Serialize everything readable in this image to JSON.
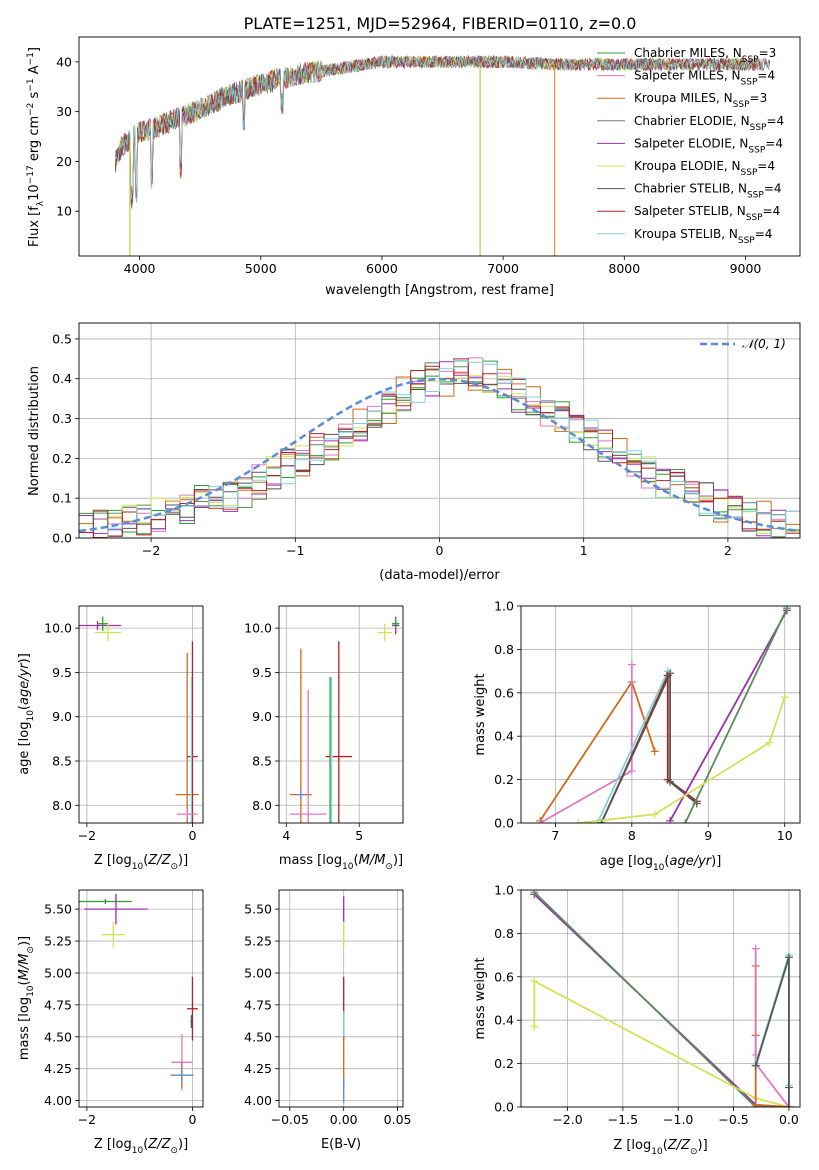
{
  "figure_title": "PLATE=1251, MJD=52964, FIBERID=0110, z=0.0",
  "chart_data": [
    {
      "type": "line",
      "id": "spectrum",
      "xlabel": "wavelength [Angstrom, rest frame]",
      "ylabel_base": "Flux [f",
      "xlim": [
        3500,
        9450
      ],
      "ylim": [
        1,
        45
      ],
      "xticks": [
        4000,
        5000,
        6000,
        7000,
        8000,
        9000
      ],
      "yticks": [
        10,
        20,
        30,
        40
      ],
      "envelope": {
        "x": [
          3800,
          3850,
          3900,
          3950,
          4000,
          4100,
          4200,
          4300,
          4400,
          4500,
          4700,
          5000,
          5300,
          5600,
          6000,
          6500,
          7000,
          7500,
          8000,
          8500,
          9000,
          9200
        ],
        "y": [
          20,
          23,
          24,
          25,
          26,
          26.5,
          27.5,
          28.5,
          29.5,
          30.5,
          33,
          35.5,
          37.5,
          38.5,
          40,
          40,
          40,
          39.5,
          39.5,
          39.5,
          39.5,
          39.5
        ]
      },
      "dropouts": [
        {
          "x": 6810,
          "to": 1,
          "color": "#bcbd22"
        },
        {
          "x": 7425,
          "to": 1,
          "color": "#ff7f0e"
        },
        {
          "x": 3920,
          "to": 1,
          "color": "#bcbd22"
        }
      ],
      "series": [
        {
          "name": "Chabrier MILES, N",
          "sub": "SSP",
          "suffix": "=3",
          "color": "#2ca02c"
        },
        {
          "name": "Salpeter MILES, N",
          "sub": "SSP",
          "suffix": "=4",
          "color": "#e377c2"
        },
        {
          "name": "Kroupa MILES, N",
          "sub": "SSP",
          "suffix": "=3",
          "color": "#d2691e"
        },
        {
          "name": "Chabrier ELODIE, N",
          "sub": "SSP",
          "suffix": "=4",
          "color": "#5b8c5a"
        },
        {
          "name": "Salpeter ELODIE, N",
          "sub": "SSP",
          "suffix": "=4",
          "color": "#9b30b0"
        },
        {
          "name": "Kroupa ELODIE, N",
          "sub": "SSP",
          "suffix": "=4",
          "color": "#d4e157"
        },
        {
          "name": "Chabrier STELIB, N",
          "sub": "SSP",
          "suffix": "=4",
          "color": "#555555"
        },
        {
          "name": "Salpeter STELIB, N",
          "sub": "SSP",
          "suffix": "=4",
          "color": "#b22222"
        },
        {
          "name": "Kroupa STELIB, N",
          "sub": "SSP",
          "suffix": "=4",
          "color": "#80d4d8"
        }
      ]
    },
    {
      "type": "histogram",
      "id": "residuals",
      "xlabel": "(data-model)/error",
      "ylabel": "Normed distribution",
      "xlim": [
        -2.5,
        2.5
      ],
      "ylim": [
        0,
        0.54
      ],
      "xticks": [
        -2,
        -1,
        0,
        1,
        2
      ],
      "yticks": [
        0.0,
        0.1,
        0.2,
        0.3,
        0.4,
        0.5
      ],
      "bin_width": 0.1,
      "bins_start": -2.5,
      "base_heights": [
        0.03,
        0.03,
        0.04,
        0.05,
        0.05,
        0.06,
        0.07,
        0.08,
        0.09,
        0.1,
        0.11,
        0.12,
        0.14,
        0.16,
        0.18,
        0.2,
        0.22,
        0.24,
        0.26,
        0.28,
        0.31,
        0.33,
        0.36,
        0.38,
        0.4,
        0.4,
        0.42,
        0.41,
        0.4,
        0.39,
        0.36,
        0.34,
        0.32,
        0.3,
        0.28,
        0.26,
        0.23,
        0.21,
        0.18,
        0.16,
        0.14,
        0.13,
        0.11,
        0.1,
        0.08,
        0.07,
        0.06,
        0.05,
        0.04,
        0.03
      ],
      "normal_label": "𝒩(0, 1)",
      "normal_color": "#5b8ad6"
    },
    {
      "type": "scatter",
      "id": "age-vs-Z",
      "xlabel": "Z [log",
      "ylabel": "age  [log",
      "xlim": [
        -2.15,
        0.2
      ],
      "ylim": [
        7.8,
        10.25
      ],
      "xticks": [
        -2,
        0
      ],
      "yticks": [
        8.0,
        8.5,
        9.0,
        9.5,
        10.0
      ],
      "points": [
        {
          "x": -1.8,
          "y": 10.03,
          "xerr": 0.45,
          "yerr": 0.05,
          "color": "#9b30b0"
        },
        {
          "x": -1.7,
          "y": 10.05,
          "xerr": 0.1,
          "yerr": 0.08,
          "color": "#2ca02c"
        },
        {
          "x": -1.6,
          "y": 9.95,
          "xerr": 0.25,
          "yerr": 0.1,
          "color": "#d4e157"
        },
        {
          "x": -0.1,
          "y": 8.12,
          "xerr": 0.22,
          "yerr": 1.6,
          "color": "#d2691e"
        },
        {
          "x": 0.0,
          "y": 8.55,
          "xerr": 0.1,
          "yerr": 1.3,
          "color": "#b22222"
        },
        {
          "x": -0.02,
          "y": 8.55,
          "xerr": 0.02,
          "yerr": 0.9,
          "color": "#80d4d8"
        },
        {
          "x": -0.1,
          "y": 7.9,
          "xerr": 0.2,
          "yerr": 0.05,
          "color": "#e377c2"
        }
      ]
    },
    {
      "type": "scatter",
      "id": "age-vs-mass",
      "xlabel": "mass [log",
      "ylabel": "",
      "xlim": [
        3.9,
        5.6
      ],
      "ylim": [
        7.8,
        10.25
      ],
      "xticks": [
        4,
        5
      ],
      "yticks": [
        8.0,
        8.5,
        9.0,
        9.5,
        10.0
      ],
      "points": [
        {
          "x": 4.2,
          "y": 8.12,
          "xerr": 0.15,
          "yerr": 1.65,
          "color": "#d2691e"
        },
        {
          "x": 4.2,
          "y": 8.12,
          "xerr": 0.05,
          "yerr": 0.05,
          "color": "#5b8ad6"
        },
        {
          "x": 4.3,
          "y": 7.9,
          "xerr": 0.25,
          "yerr": 1.4,
          "color": "#e377c2"
        },
        {
          "x": 4.6,
          "y": 8.55,
          "xerr": 0.02,
          "yerr": 0.9,
          "color": "#2ca02c"
        },
        {
          "x": 4.72,
          "y": 8.55,
          "xerr": 0.18,
          "yerr": 1.3,
          "color": "#b22222"
        },
        {
          "x": 4.62,
          "y": 8.55,
          "xerr": 0.02,
          "yerr": 0.9,
          "color": "#80d4d8"
        },
        {
          "x": 5.35,
          "y": 9.95,
          "xerr": 0.1,
          "yerr": 0.1,
          "color": "#d4e157"
        },
        {
          "x": 5.5,
          "y": 10.03,
          "xerr": 0.05,
          "yerr": 0.1,
          "color": "#9b30b0"
        },
        {
          "x": 5.5,
          "y": 10.05,
          "xerr": 0.05,
          "yerr": 0.05,
          "color": "#2ca02c"
        }
      ]
    },
    {
      "type": "line",
      "id": "massweight-vs-age",
      "xlabel": "age  [log",
      "ylabel": "mass weight",
      "xlim": [
        6.55,
        10.2
      ],
      "ylim": [
        0,
        1.0
      ],
      "xticks": [
        7,
        8,
        9,
        10
      ],
      "yticks": [
        0.0,
        0.2,
        0.4,
        0.6,
        0.8,
        1.0
      ],
      "series": [
        {
          "color": "#d2691e",
          "x": [
            6.8,
            8.0,
            8.3
          ],
          "y": [
            0.01,
            0.65,
            0.33
          ]
        },
        {
          "color": "#e377c2",
          "x": [
            6.8,
            8.0,
            8.0
          ],
          "y": [
            0.0,
            0.24,
            0.73
          ]
        },
        {
          "color": "#80d4d8",
          "x": [
            7.55,
            8.47,
            8.47,
            8.85
          ],
          "y": [
            0.0,
            0.7,
            0.2,
            0.1
          ]
        },
        {
          "color": "#b22222",
          "x": [
            7.6,
            8.47,
            8.47,
            8.85
          ],
          "y": [
            0.0,
            0.68,
            0.2,
            0.1
          ]
        },
        {
          "color": "#555555",
          "x": [
            7.6,
            8.5,
            8.5,
            8.85
          ],
          "y": [
            0.0,
            0.69,
            0.19,
            0.09
          ]
        },
        {
          "color": "#9b30b0",
          "x": [
            8.5,
            10.03
          ],
          "y": [
            0.01,
            0.98
          ]
        },
        {
          "color": "#5b8c5a",
          "x": [
            8.7,
            10.03
          ],
          "y": [
            0.0,
            0.99
          ]
        },
        {
          "color": "#d4e157",
          "x": [
            7.3,
            8.3,
            9.8,
            10.0
          ],
          "y": [
            0.0,
            0.04,
            0.37,
            0.58
          ]
        }
      ]
    },
    {
      "type": "scatter",
      "id": "mass-vs-Z",
      "xlabel": "Z [log",
      "ylabel": "mass [log",
      "xlim": [
        -2.15,
        0.2
      ],
      "ylim": [
        3.95,
        5.65
      ],
      "xticks": [
        -2,
        0
      ],
      "yticks": [
        4.0,
        4.25,
        4.5,
        4.75,
        5.0,
        5.25,
        5.5
      ],
      "points": [
        {
          "x": -1.65,
          "y": 5.56,
          "xerr": 0.5,
          "yerr": 0.02,
          "color": "#2ca02c"
        },
        {
          "x": -1.45,
          "y": 5.5,
          "xerr": 0.6,
          "yerr": 0.12,
          "color": "#9b30b0"
        },
        {
          "x": -1.5,
          "y": 5.3,
          "xerr": 0.22,
          "yerr": 0.1,
          "color": "#d4e157"
        },
        {
          "x": -0.2,
          "y": 4.3,
          "xerr": 0.2,
          "yerr": 0.22,
          "color": "#e377c2"
        },
        {
          "x": -0.2,
          "y": 4.2,
          "xerr": 0.22,
          "yerr": 0.1,
          "color": "#d2691e"
        },
        {
          "x": -0.2,
          "y": 4.2,
          "xerr": 0.2,
          "yerr": 0.05,
          "color": "#5b8ad6"
        },
        {
          "x": 0.0,
          "y": 4.72,
          "xerr": 0.1,
          "yerr": 0.25,
          "color": "#b22222"
        },
        {
          "x": -0.02,
          "y": 4.62,
          "xerr": 0.02,
          "yerr": 0.05,
          "color": "#555555"
        }
      ]
    },
    {
      "type": "scatter",
      "id": "mass-vs-EBV",
      "xlabel": "E(B-V)",
      "ylabel": "",
      "xlim": [
        -0.06,
        0.055
      ],
      "ylim": [
        3.95,
        5.65
      ],
      "xticks": [
        -0.05,
        0.0,
        0.05
      ],
      "xtick_labels": [
        "−0.05",
        "0.00",
        "0.05"
      ],
      "yticks": [
        4.0,
        4.25,
        4.5,
        4.75,
        5.0,
        5.25,
        5.5
      ],
      "points": [
        {
          "x": 0.0,
          "y": 5.5,
          "xerr": 0,
          "yerr": 0.1,
          "color": "#9b30b0"
        },
        {
          "x": 0.0,
          "y": 5.3,
          "xerr": 0,
          "yerr": 0.1,
          "color": "#d4e157"
        },
        {
          "x": 0.0,
          "y": 4.72,
          "xerr": 0,
          "yerr": 0.25,
          "color": "#b22222"
        },
        {
          "x": 0.0,
          "y": 4.6,
          "xerr": 0,
          "yerr": 0.1,
          "color": "#80d4d8"
        },
        {
          "x": 0.0,
          "y": 4.3,
          "xerr": 0,
          "yerr": 0.2,
          "color": "#d2691e"
        },
        {
          "x": 0.0,
          "y": 4.08,
          "xerr": 0,
          "yerr": 0.1,
          "color": "#5b8ad6"
        }
      ]
    },
    {
      "type": "line",
      "id": "massweight-vs-Z",
      "xlabel": "Z [log",
      "ylabel": "mass weight",
      "xlim": [
        -2.42,
        0.1
      ],
      "ylim": [
        0,
        1.0
      ],
      "xticks": [
        -2.0,
        -1.5,
        -1.0,
        -0.5,
        0.0
      ],
      "xtick_labels": [
        "−2.0",
        "−1.5",
        "−1.0",
        "−0.5",
        "0.0"
      ],
      "yticks": [
        0.0,
        0.2,
        0.4,
        0.6,
        0.8,
        1.0
      ],
      "series": [
        {
          "color": "#9b30b0",
          "x": [
            -2.3,
            -0.3,
            0.0
          ],
          "y": [
            0.98,
            0.01,
            0.0
          ]
        },
        {
          "color": "#5b8c5a",
          "x": [
            -2.3,
            -0.3,
            0.0
          ],
          "y": [
            0.99,
            0.0,
            0.0
          ]
        },
        {
          "color": "#d4e157",
          "x": [
            -2.3,
            -2.3,
            -0.3,
            0.0
          ],
          "y": [
            0.37,
            0.58,
            0.04,
            0.0
          ]
        },
        {
          "color": "#d2691e",
          "x": [
            -0.3,
            -0.3,
            -0.3,
            0.0
          ],
          "y": [
            0.65,
            0.33,
            0.01,
            0.0
          ]
        },
        {
          "color": "#e377c2",
          "x": [
            -0.3,
            -0.3,
            -0.3,
            0.0
          ],
          "y": [
            0.73,
            0.24,
            0.2,
            0.0
          ]
        },
        {
          "color": "#80d4d8",
          "x": [
            -0.3,
            0.0,
            0.0,
            0.0
          ],
          "y": [
            0.2,
            0.7,
            0.1,
            0.0
          ]
        },
        {
          "color": "#555555",
          "x": [
            -0.3,
            0.0,
            0.0,
            0.0
          ],
          "y": [
            0.19,
            0.69,
            0.09,
            0.0
          ]
        }
      ]
    }
  ]
}
